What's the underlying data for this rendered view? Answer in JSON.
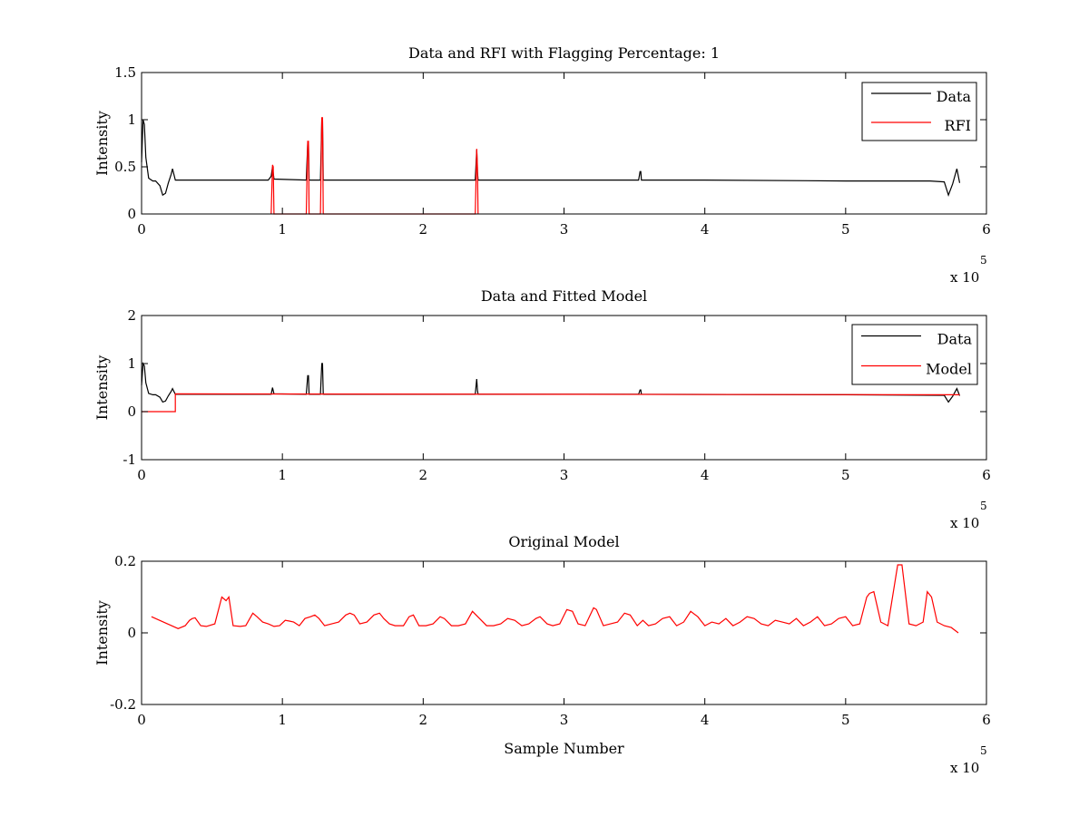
{
  "chart_data": [
    {
      "type": "line",
      "title": "Data and RFI with Flagging Percentage: 1",
      "xlabel": "",
      "ylabel": "Intensity",
      "xlim": [
        0,
        6
      ],
      "ylim": [
        0,
        1.5
      ],
      "xticks": [
        0,
        1,
        2,
        3,
        4,
        5,
        6
      ],
      "yticks": [
        0,
        0.5,
        1,
        1.5
      ],
      "x_multiplier": "x 10",
      "x_multiplier_exp": "5",
      "legend": {
        "position": "top-right",
        "entries": [
          "Data",
          "RFI"
        ]
      },
      "series": [
        {
          "name": "Data",
          "color": "#000000",
          "x": [
            0,
            0.01,
            0.02,
            0.03,
            0.05,
            0.08,
            0.1,
            0.13,
            0.15,
            0.17,
            0.19,
            0.21,
            0.22,
            0.24,
            0.3,
            0.5,
            0.9,
            0.92,
            0.93,
            0.94,
            1.17,
            1.18,
            1.185,
            1.19,
            1.27,
            1.28,
            1.285,
            1.29,
            2.37,
            2.38,
            2.385,
            2.39,
            3.53,
            3.54,
            3.545,
            3.55,
            4.0,
            5.0,
            5.6,
            5.7,
            5.73,
            5.76,
            5.79,
            5.81
          ],
          "y": [
            0.55,
            1.0,
            0.95,
            0.6,
            0.38,
            0.35,
            0.35,
            0.3,
            0.2,
            0.22,
            0.33,
            0.42,
            0.48,
            0.36,
            0.36,
            0.36,
            0.36,
            0.4,
            0.5,
            0.37,
            0.36,
            0.75,
            0.75,
            0.36,
            0.36,
            1.0,
            1.0,
            0.36,
            0.36,
            0.68,
            0.45,
            0.36,
            0.36,
            0.45,
            0.45,
            0.36,
            0.36,
            0.35,
            0.35,
            0.34,
            0.2,
            0.32,
            0.48,
            0.33
          ]
        },
        {
          "name": "RFI",
          "color": "#ff0000",
          "x": [
            0.92,
            0.93,
            0.935,
            0.94,
            1.17,
            1.18,
            1.185,
            1.19,
            1.27,
            1.28,
            1.285,
            1.29,
            2.37,
            2.38,
            2.385,
            2.39
          ],
          "y": [
            0,
            0.52,
            0.5,
            0,
            0,
            0.77,
            0.77,
            0,
            0,
            1.02,
            1.02,
            0,
            0,
            0.69,
            0.5,
            0
          ]
        }
      ]
    },
    {
      "type": "line",
      "title": "Data and Fitted Model",
      "xlabel": "",
      "ylabel": "Intensity",
      "xlim": [
        0,
        6
      ],
      "ylim": [
        -1,
        2
      ],
      "xticks": [
        0,
        1,
        2,
        3,
        4,
        5,
        6
      ],
      "yticks": [
        -1,
        0,
        1,
        2
      ],
      "x_multiplier": "x 10",
      "x_multiplier_exp": "5",
      "legend": {
        "position": "top-right",
        "entries": [
          "Data",
          "Model"
        ]
      },
      "series": [
        {
          "name": "Data",
          "color": "#000000",
          "x": [
            0,
            0.01,
            0.02,
            0.03,
            0.05,
            0.08,
            0.1,
            0.13,
            0.15,
            0.17,
            0.19,
            0.21,
            0.22,
            0.24,
            0.5,
            0.92,
            0.93,
            0.94,
            1.17,
            1.18,
            1.185,
            1.19,
            1.27,
            1.28,
            1.285,
            1.29,
            2.37,
            2.38,
            2.385,
            2.39,
            3.53,
            3.54,
            3.545,
            3.55,
            5.0,
            5.7,
            5.73,
            5.76,
            5.79,
            5.81
          ],
          "y": [
            0.55,
            1.0,
            0.95,
            0.6,
            0.38,
            0.35,
            0.35,
            0.3,
            0.2,
            0.22,
            0.33,
            0.42,
            0.48,
            0.36,
            0.36,
            0.36,
            0.5,
            0.37,
            0.36,
            0.75,
            0.75,
            0.36,
            0.36,
            1.0,
            1.0,
            0.36,
            0.36,
            0.68,
            0.45,
            0.36,
            0.36,
            0.45,
            0.45,
            0.36,
            0.35,
            0.34,
            0.2,
            0.32,
            0.48,
            0.33
          ]
        },
        {
          "name": "Model",
          "color": "#ff0000",
          "x": [
            0,
            0.24,
            0.24,
            5.81
          ],
          "y": [
            0,
            0,
            0.37,
            0.35
          ]
        }
      ]
    },
    {
      "type": "line",
      "title": "Original Model",
      "xlabel": "Sample Number",
      "ylabel": "Intensity",
      "xlim": [
        0,
        6
      ],
      "ylim": [
        -0.2,
        0.2
      ],
      "xticks": [
        0,
        1,
        2,
        3,
        4,
        5,
        6
      ],
      "yticks": [
        -0.2,
        0,
        0.2
      ],
      "x_multiplier": "x 10",
      "x_multiplier_exp": "5",
      "series": [
        {
          "color": "#ff0000",
          "x": [
            0.07,
            0.26,
            0.31,
            0.34,
            0.36,
            0.38,
            0.42,
            0.46,
            0.52,
            0.57,
            0.6,
            0.62,
            0.65,
            0.7,
            0.74,
            0.79,
            0.82,
            0.86,
            0.9,
            0.94,
            0.98,
            1.02,
            1.05,
            1.08,
            1.12,
            1.16,
            1.2,
            1.23,
            1.26,
            1.3,
            1.35,
            1.4,
            1.45,
            1.48,
            1.51,
            1.55,
            1.6,
            1.65,
            1.69,
            1.72,
            1.76,
            1.8,
            1.86,
            1.9,
            1.93,
            1.97,
            2.02,
            2.07,
            2.12,
            2.15,
            2.2,
            2.25,
            2.3,
            2.35,
            2.4,
            2.45,
            2.5,
            2.55,
            2.6,
            2.65,
            2.7,
            2.75,
            2.8,
            2.83,
            2.88,
            2.92,
            2.97,
            3.02,
            3.06,
            3.1,
            3.15,
            3.21,
            3.23,
            3.28,
            3.33,
            3.38,
            3.43,
            3.47,
            3.52,
            3.56,
            3.6,
            3.65,
            3.7,
            3.75,
            3.8,
            3.85,
            3.9,
            3.95,
            4.0,
            4.05,
            4.1,
            4.15,
            4.2,
            4.25,
            4.3,
            4.35,
            4.4,
            4.45,
            4.5,
            4.55,
            4.6,
            4.65,
            4.7,
            4.75,
            4.8,
            4.85,
            4.9,
            4.95,
            5.0,
            5.05,
            5.1,
            5.15,
            5.17,
            5.2,
            5.25,
            5.3,
            5.37,
            5.4,
            5.45,
            5.5,
            5.55,
            5.58,
            5.61,
            5.65,
            5.7,
            5.75,
            5.8
          ],
          "y": [
            0.045,
            0.012,
            0.02,
            0.035,
            0.04,
            0.042,
            0.02,
            0.018,
            0.025,
            0.1,
            0.09,
            0.1,
            0.02,
            0.018,
            0.02,
            0.055,
            0.045,
            0.03,
            0.025,
            0.018,
            0.02,
            0.035,
            0.033,
            0.03,
            0.02,
            0.04,
            0.045,
            0.05,
            0.04,
            0.02,
            0.025,
            0.03,
            0.05,
            0.055,
            0.05,
            0.025,
            0.03,
            0.05,
            0.055,
            0.04,
            0.025,
            0.02,
            0.02,
            0.045,
            0.05,
            0.02,
            0.02,
            0.025,
            0.045,
            0.04,
            0.02,
            0.02,
            0.025,
            0.06,
            0.04,
            0.02,
            0.02,
            0.025,
            0.04,
            0.035,
            0.02,
            0.025,
            0.04,
            0.045,
            0.025,
            0.02,
            0.025,
            0.065,
            0.06,
            0.025,
            0.02,
            0.07,
            0.065,
            0.02,
            0.025,
            0.03,
            0.055,
            0.05,
            0.02,
            0.035,
            0.02,
            0.025,
            0.04,
            0.045,
            0.02,
            0.03,
            0.06,
            0.045,
            0.02,
            0.03,
            0.025,
            0.04,
            0.02,
            0.03,
            0.045,
            0.04,
            0.025,
            0.02,
            0.035,
            0.03,
            0.025,
            0.04,
            0.02,
            0.03,
            0.045,
            0.02,
            0.025,
            0.04,
            0.045,
            0.02,
            0.025,
            0.1,
            0.11,
            0.115,
            0.03,
            0.02,
            0.19,
            0.19,
            0.025,
            0.02,
            0.03,
            0.115,
            0.1,
            0.03,
            0.02,
            0.015,
            0.0
          ]
        }
      ]
    }
  ]
}
